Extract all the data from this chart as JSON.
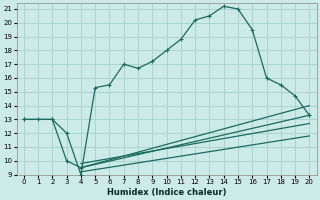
{
  "xlabel": "Humidex (Indice chaleur)",
  "bg_color": "#cceae7",
  "grid_color": "#aad4d0",
  "line_color": "#1a6b5e",
  "xlim": [
    -0.5,
    20.5
  ],
  "ylim": [
    9,
    21.4
  ],
  "xticks": [
    0,
    1,
    2,
    3,
    4,
    5,
    6,
    7,
    8,
    9,
    10,
    11,
    12,
    13,
    14,
    15,
    16,
    17,
    18,
    19,
    20
  ],
  "yticks": [
    9,
    10,
    11,
    12,
    13,
    14,
    15,
    16,
    17,
    18,
    19,
    20,
    21
  ],
  "main_line_x": [
    0,
    1,
    2,
    3,
    4,
    5,
    6,
    7,
    8,
    9,
    10,
    11,
    12,
    13,
    14,
    15,
    16,
    17,
    18,
    19,
    20
  ],
  "main_line_y": [
    13,
    13,
    13,
    12,
    9,
    15.3,
    15.5,
    17.0,
    16.7,
    17.2,
    18.0,
    18.8,
    20.2,
    20.5,
    21.2,
    21.0,
    19.5,
    16.0,
    15.5,
    14.7,
    13.3
  ],
  "line2_x": [
    0,
    2,
    3,
    4,
    20
  ],
  "line2_y": [
    13,
    13,
    10,
    9.5,
    13.3
  ],
  "line3_x": [
    4,
    20
  ],
  "line3_y": [
    9.5,
    14.0
  ],
  "line4_x": [
    4,
    20
  ],
  "line4_y": [
    9.8,
    12.7
  ],
  "line5_x": [
    4,
    20
  ],
  "line5_y": [
    9.2,
    11.8
  ]
}
